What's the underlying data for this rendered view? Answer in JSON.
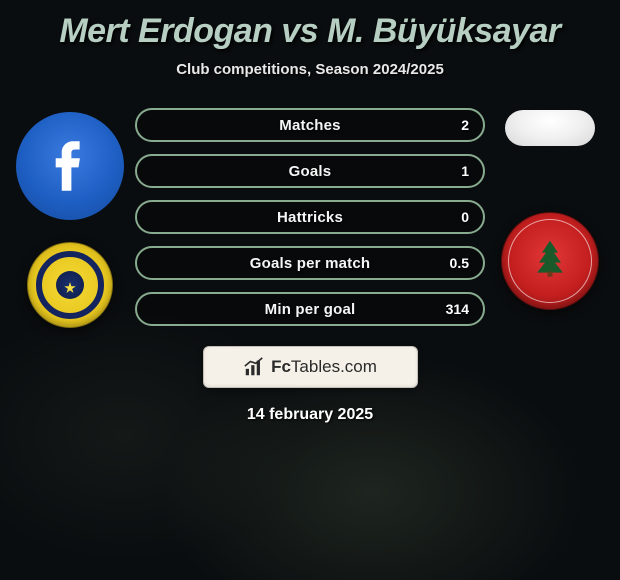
{
  "title": "Mert Erdogan vs M. Büyüksayar",
  "subtitle": "Club competitions, Season 2024/2025",
  "date": "14 february 2025",
  "brand": {
    "name_bold": "Fc",
    "name_rest": "Tables",
    "tld": ".com"
  },
  "colors": {
    "title": "#b7cfc2",
    "pill_border": "#88ab8f",
    "pill_bg": "rgba(0,0,0,0.25)"
  },
  "left": {
    "player_icon": "facebook-f",
    "club": "ankaragucu"
  },
  "right": {
    "player_blank": true,
    "club": "umraniye"
  },
  "stats": [
    {
      "label": "Matches",
      "value": "2"
    },
    {
      "label": "Goals",
      "value": "1"
    },
    {
      "label": "Hattricks",
      "value": "0"
    },
    {
      "label": "Goals per match",
      "value": "0.5"
    },
    {
      "label": "Min per goal",
      "value": "314"
    }
  ],
  "style": {
    "pill_height": 34,
    "pill_gap": 12,
    "title_fontsize": 34,
    "subtitle_fontsize": 15,
    "stat_label_fontsize": 15,
    "stat_value_fontsize": 14
  }
}
